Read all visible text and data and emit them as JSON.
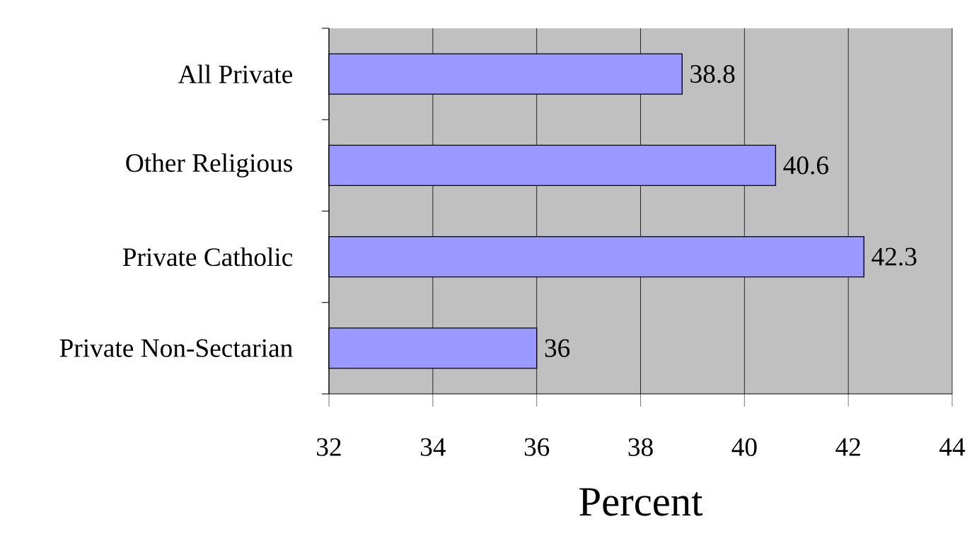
{
  "chart_data": {
    "type": "bar",
    "orientation": "horizontal",
    "categories": [
      "All Private",
      "Other Religious",
      "Private Catholic",
      "Private Non-Sectarian"
    ],
    "values": [
      38.8,
      40.6,
      42.3,
      36
    ],
    "color": "#9999ff",
    "xlim": [
      32,
      44
    ],
    "xticks": [
      32,
      34,
      36,
      38,
      40,
      42,
      44
    ],
    "xlabel": "Percent",
    "grid": "x",
    "data_labels": true
  }
}
